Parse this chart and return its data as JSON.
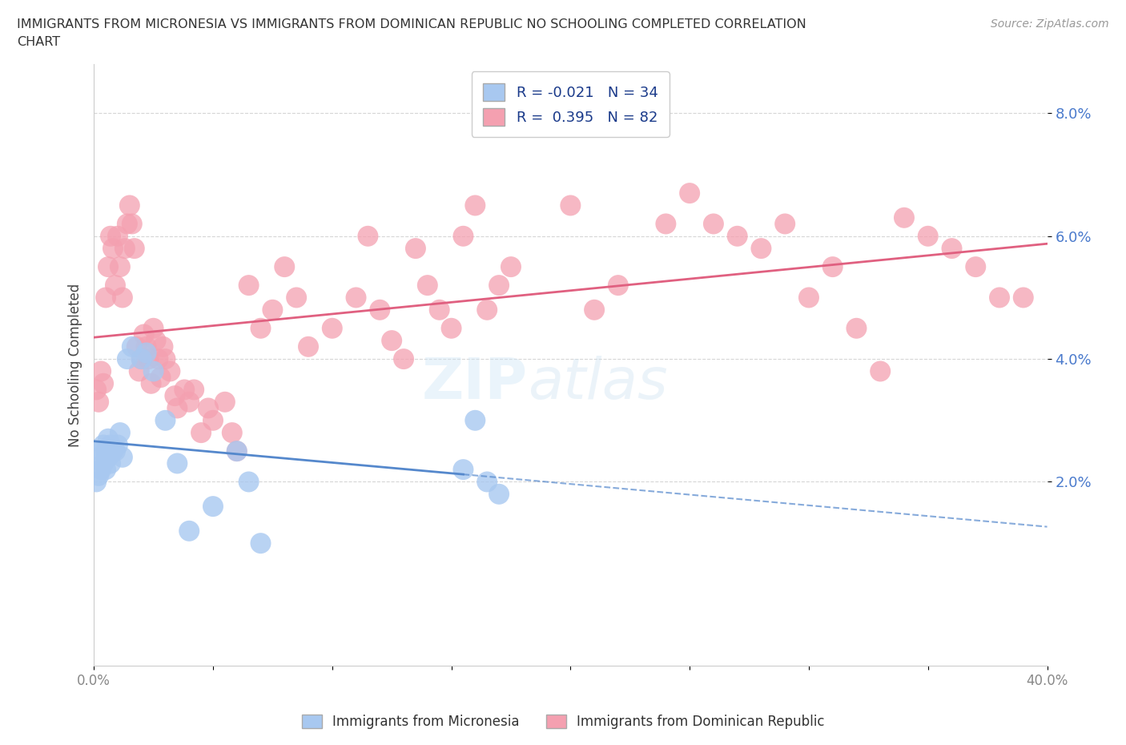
{
  "title_line1": "IMMIGRANTS FROM MICRONESIA VS IMMIGRANTS FROM DOMINICAN REPUBLIC NO SCHOOLING COMPLETED CORRELATION",
  "title_line2": "CHART",
  "source": "Source: ZipAtlas.com",
  "ylabel": "No Schooling Completed",
  "xlim": [
    0.0,
    0.4
  ],
  "ylim": [
    -0.01,
    0.088
  ],
  "micronesia_color": "#a8c8f0",
  "dominican_color": "#f4a0b0",
  "micronesia_R": -0.021,
  "micronesia_N": 34,
  "dominican_R": 0.395,
  "dominican_N": 82,
  "legend_label_micro": "Immigrants from Micronesia",
  "legend_label_dom": "Immigrants from Dominican Republic",
  "watermark": "ZIPAtlas",
  "background_color": "#ffffff",
  "grid_color": "#cccccc",
  "trend_micro_color": "#5588cc",
  "trend_dom_color": "#e06080",
  "ytick_color": "#4a7acc",
  "xtick_color": "#888888",
  "micro_x": [
    0.001,
    0.002,
    0.002,
    0.003,
    0.003,
    0.004,
    0.004,
    0.005,
    0.005,
    0.006,
    0.006,
    0.007,
    0.007,
    0.008,
    0.009,
    0.01,
    0.011,
    0.012,
    0.014,
    0.016,
    0.02,
    0.022,
    0.025,
    0.03,
    0.035,
    0.04,
    0.05,
    0.06,
    0.065,
    0.07,
    0.155,
    0.16,
    0.165,
    0.17
  ],
  "micro_y": [
    0.02,
    0.021,
    0.024,
    0.022,
    0.025,
    0.023,
    0.026,
    0.022,
    0.025,
    0.024,
    0.027,
    0.023,
    0.026,
    0.025,
    0.025,
    0.026,
    0.028,
    0.024,
    0.04,
    0.042,
    0.04,
    0.041,
    0.038,
    0.03,
    0.023,
    0.012,
    0.016,
    0.025,
    0.02,
    0.01,
    0.022,
    0.03,
    0.02,
    0.018
  ],
  "dom_x": [
    0.001,
    0.002,
    0.003,
    0.004,
    0.005,
    0.006,
    0.007,
    0.008,
    0.009,
    0.01,
    0.011,
    0.012,
    0.013,
    0.014,
    0.015,
    0.016,
    0.017,
    0.018,
    0.019,
    0.02,
    0.021,
    0.022,
    0.023,
    0.024,
    0.025,
    0.026,
    0.027,
    0.028,
    0.029,
    0.03,
    0.032,
    0.034,
    0.035,
    0.038,
    0.04,
    0.042,
    0.045,
    0.048,
    0.05,
    0.055,
    0.058,
    0.06,
    0.065,
    0.07,
    0.075,
    0.08,
    0.085,
    0.09,
    0.1,
    0.11,
    0.115,
    0.12,
    0.125,
    0.13,
    0.135,
    0.14,
    0.145,
    0.15,
    0.155,
    0.16,
    0.165,
    0.17,
    0.175,
    0.2,
    0.21,
    0.22,
    0.24,
    0.25,
    0.26,
    0.27,
    0.28,
    0.29,
    0.3,
    0.31,
    0.32,
    0.33,
    0.34,
    0.35,
    0.36,
    0.37,
    0.38,
    0.39
  ],
  "dom_y": [
    0.035,
    0.033,
    0.038,
    0.036,
    0.05,
    0.055,
    0.06,
    0.058,
    0.052,
    0.06,
    0.055,
    0.05,
    0.058,
    0.062,
    0.065,
    0.062,
    0.058,
    0.042,
    0.038,
    0.04,
    0.044,
    0.042,
    0.04,
    0.036,
    0.045,
    0.043,
    0.04,
    0.037,
    0.042,
    0.04,
    0.038,
    0.034,
    0.032,
    0.035,
    0.033,
    0.035,
    0.028,
    0.032,
    0.03,
    0.033,
    0.028,
    0.025,
    0.052,
    0.045,
    0.048,
    0.055,
    0.05,
    0.042,
    0.045,
    0.05,
    0.06,
    0.048,
    0.043,
    0.04,
    0.058,
    0.052,
    0.048,
    0.045,
    0.06,
    0.065,
    0.048,
    0.052,
    0.055,
    0.065,
    0.048,
    0.052,
    0.062,
    0.067,
    0.062,
    0.06,
    0.058,
    0.062,
    0.05,
    0.055,
    0.045,
    0.038,
    0.063,
    0.06,
    0.058,
    0.055,
    0.05,
    0.05
  ]
}
